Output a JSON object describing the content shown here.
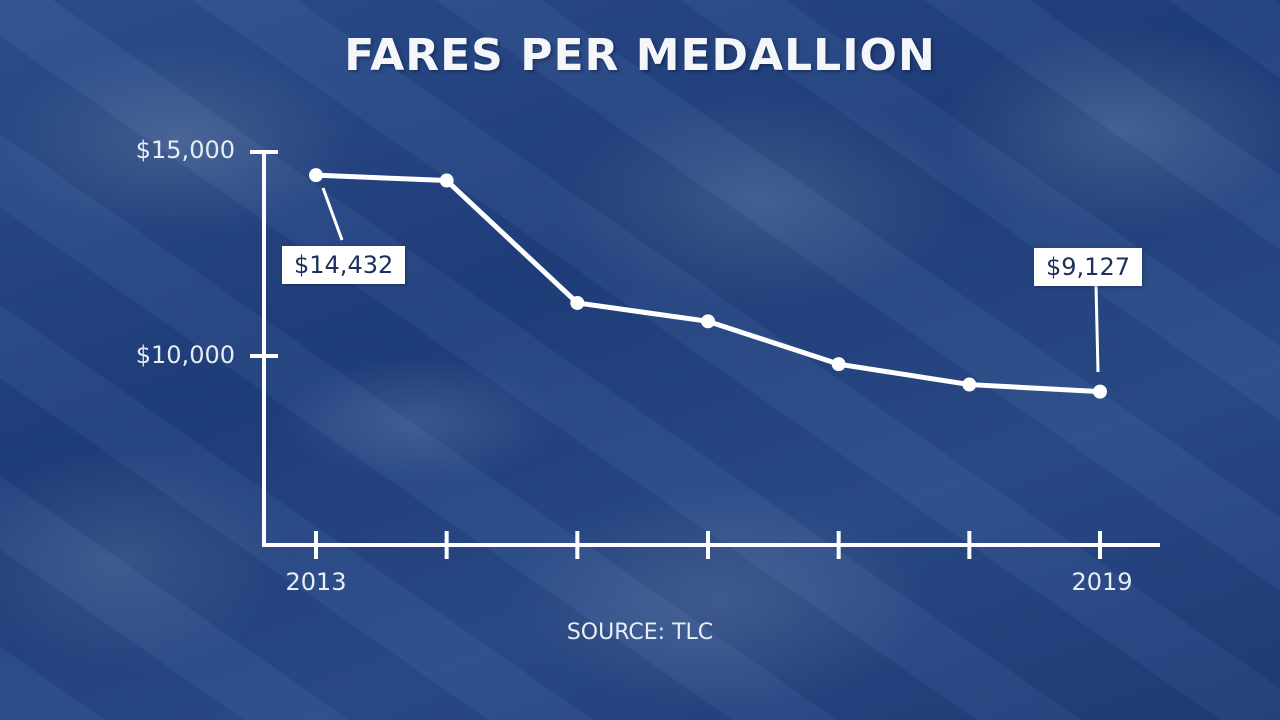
{
  "title": "FARES PER MEDALLION",
  "source": "SOURCE: TLC",
  "y_axis": {
    "ticks": [
      {
        "label": "$15,000",
        "value": 15000
      },
      {
        "label": "$10,000",
        "value": 10000
      }
    ]
  },
  "x_axis": {
    "labels": [
      {
        "label": "2013",
        "index": 0
      },
      {
        "label": "2019",
        "index": 6
      }
    ]
  },
  "callouts": {
    "first": "$14,432",
    "last": "$9,127"
  },
  "colors": {
    "background": "#24457f",
    "line": "#ffffff",
    "callout_bg": "#ffffff",
    "callout_text": "#1e2f5c"
  },
  "chart_data": {
    "type": "line",
    "title": "FARES PER MEDALLION",
    "subtitle": "",
    "source": "SOURCE: TLC",
    "x": [
      2013,
      2014,
      2015,
      2016,
      2017,
      2018,
      2019
    ],
    "x_tick_labels_shown": [
      "2013",
      "2019"
    ],
    "series": [
      {
        "name": "Fares per medallion",
        "values": [
          14432,
          14300,
          11300,
          10850,
          9800,
          9300,
          9127
        ]
      }
    ],
    "annotations": [
      {
        "x": 2013,
        "text": "$14,432"
      },
      {
        "x": 2019,
        "text": "$9,127"
      }
    ],
    "xlabel": "",
    "ylabel": "",
    "y_tick_labels": [
      "$10,000",
      "$15,000"
    ],
    "ylim": [
      5500,
      15000
    ],
    "grid": false,
    "legend": "none"
  }
}
